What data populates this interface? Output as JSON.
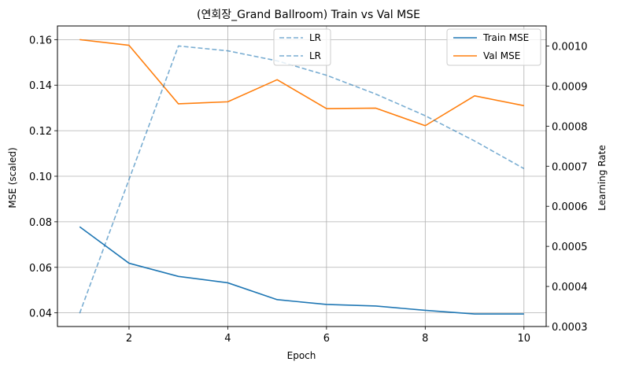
{
  "chart_data": {
    "type": "line",
    "title": "(연회장_Grand Ballroom) Train vs Val MSE",
    "xlabel": "Epoch",
    "ylabel": "MSE (scaled)",
    "y2label": "Learning Rate",
    "x": [
      1,
      2,
      3,
      4,
      5,
      6,
      7,
      8,
      9,
      10
    ],
    "xlim": [
      0.55,
      10.45
    ],
    "ylim": [
      0.034,
      0.166
    ],
    "y2lim": [
      0.0003,
      0.00105
    ],
    "xticks": [
      2,
      4,
      6,
      8,
      10
    ],
    "xtick_labels": [
      "2",
      "4",
      "6",
      "8",
      "10"
    ],
    "yticks": [
      0.04,
      0.06,
      0.08,
      0.1,
      0.12,
      0.14,
      0.16
    ],
    "ytick_labels": [
      "0.04",
      "0.06",
      "0.08",
      "0.10",
      "0.12",
      "0.14",
      "0.16"
    ],
    "y2ticks": [
      0.0003,
      0.0004,
      0.0005,
      0.0006,
      0.0007,
      0.0008,
      0.0009,
      0.001
    ],
    "y2tick_labels": [
      "0.0003",
      "0.0004",
      "0.0005",
      "0.0006",
      "0.0007",
      "0.0008",
      "0.0009",
      "0.0010"
    ],
    "grid": true,
    "series": [
      {
        "name": "Train MSE",
        "axis": "left",
        "style": "solid",
        "color": "#1f77b4",
        "values": [
          0.0778,
          0.0618,
          0.056,
          0.0532,
          0.0458,
          0.0437,
          0.043,
          0.0411,
          0.0395,
          0.0395
        ]
      },
      {
        "name": "Val MSE",
        "axis": "left",
        "style": "solid",
        "color": "#ff7f0e",
        "values": [
          0.16,
          0.1575,
          0.1318,
          0.1327,
          0.1424,
          0.1297,
          0.1299,
          0.1222,
          0.1353,
          0.131
        ]
      },
      {
        "name": "LR",
        "axis": "right",
        "style": "dashed",
        "color": "#1f77b4",
        "opacity": 0.6,
        "values": [
          0.000333,
          0.000667,
          0.001,
          0.000988,
          0.000963,
          0.000927,
          0.00088,
          0.000826,
          0.000763,
          0.000694
        ]
      }
    ],
    "legend_right": {
      "placement": "top-right",
      "entries": [
        "Train MSE",
        "Val MSE"
      ]
    },
    "legend_left": {
      "placement": "upper-center",
      "entries": [
        "LR",
        "LR"
      ]
    }
  }
}
